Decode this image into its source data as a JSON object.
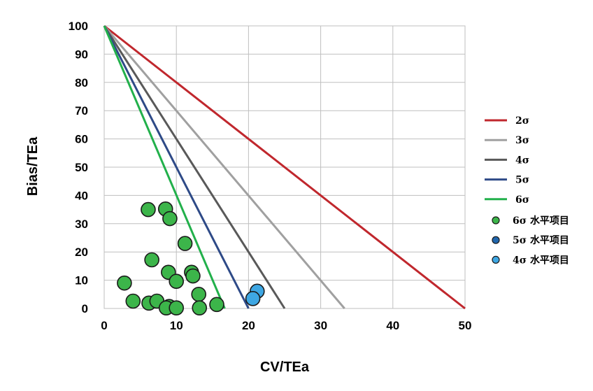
{
  "chart_data": {
    "type": "scatter",
    "title": "",
    "xlabel": "CV/TEa",
    "ylabel": "Bias/TEa",
    "xlim": [
      0,
      50
    ],
    "ylim": [
      0,
      100
    ],
    "x_ticks": [
      "0",
      "10",
      "20",
      "30",
      "40",
      "50"
    ],
    "y_ticks": [
      "0",
      "10",
      "20",
      "30",
      "40",
      "50",
      "60",
      "70",
      "80",
      "90",
      "100"
    ],
    "grid": true,
    "legend_position": "right",
    "lines": [
      {
        "name": "2σ",
        "color": "#c0272d",
        "x": [
          0,
          50
        ],
        "y": [
          100,
          0
        ]
      },
      {
        "name": "3σ",
        "color": "#a0a0a0",
        "x": [
          0,
          33.3
        ],
        "y": [
          100,
          0
        ]
      },
      {
        "name": "4σ",
        "color": "#595959",
        "x": [
          0,
          25
        ],
        "y": [
          100,
          0
        ]
      },
      {
        "name": "5σ",
        "color": "#2e4a87",
        "x": [
          0,
          20
        ],
        "y": [
          100,
          0
        ]
      },
      {
        "name": "6σ",
        "color": "#22b04b",
        "x": [
          0,
          16.7
        ],
        "y": [
          100,
          0
        ]
      }
    ],
    "series": [
      {
        "name": "6σ 水平项目",
        "color": "#3cb54a",
        "points": [
          [
            6.1,
            35
          ],
          [
            8.5,
            35.2
          ],
          [
            9.1,
            31.8
          ],
          [
            11.2,
            23
          ],
          [
            6.6,
            17.2
          ],
          [
            8.9,
            12.8
          ],
          [
            12.1,
            12.8
          ],
          [
            12.3,
            11.5
          ],
          [
            10.0,
            9.6
          ],
          [
            2.8,
            9.0
          ],
          [
            13.1,
            5.0
          ],
          [
            4.0,
            2.6
          ],
          [
            6.2,
            1.9
          ],
          [
            7.3,
            2.6
          ],
          [
            15.6,
            1.4
          ],
          [
            9.0,
            0.7
          ],
          [
            8.6,
            0.2
          ],
          [
            10.0,
            0.2
          ],
          [
            13.2,
            0.2
          ]
        ]
      },
      {
        "name": "5σ 水平项目",
        "color": "#2166ac",
        "points": []
      },
      {
        "name": "4σ 水平项目",
        "color": "#3ea7e3",
        "points": [
          [
            21.2,
            6.1
          ],
          [
            20.6,
            3.5
          ]
        ]
      }
    ]
  }
}
